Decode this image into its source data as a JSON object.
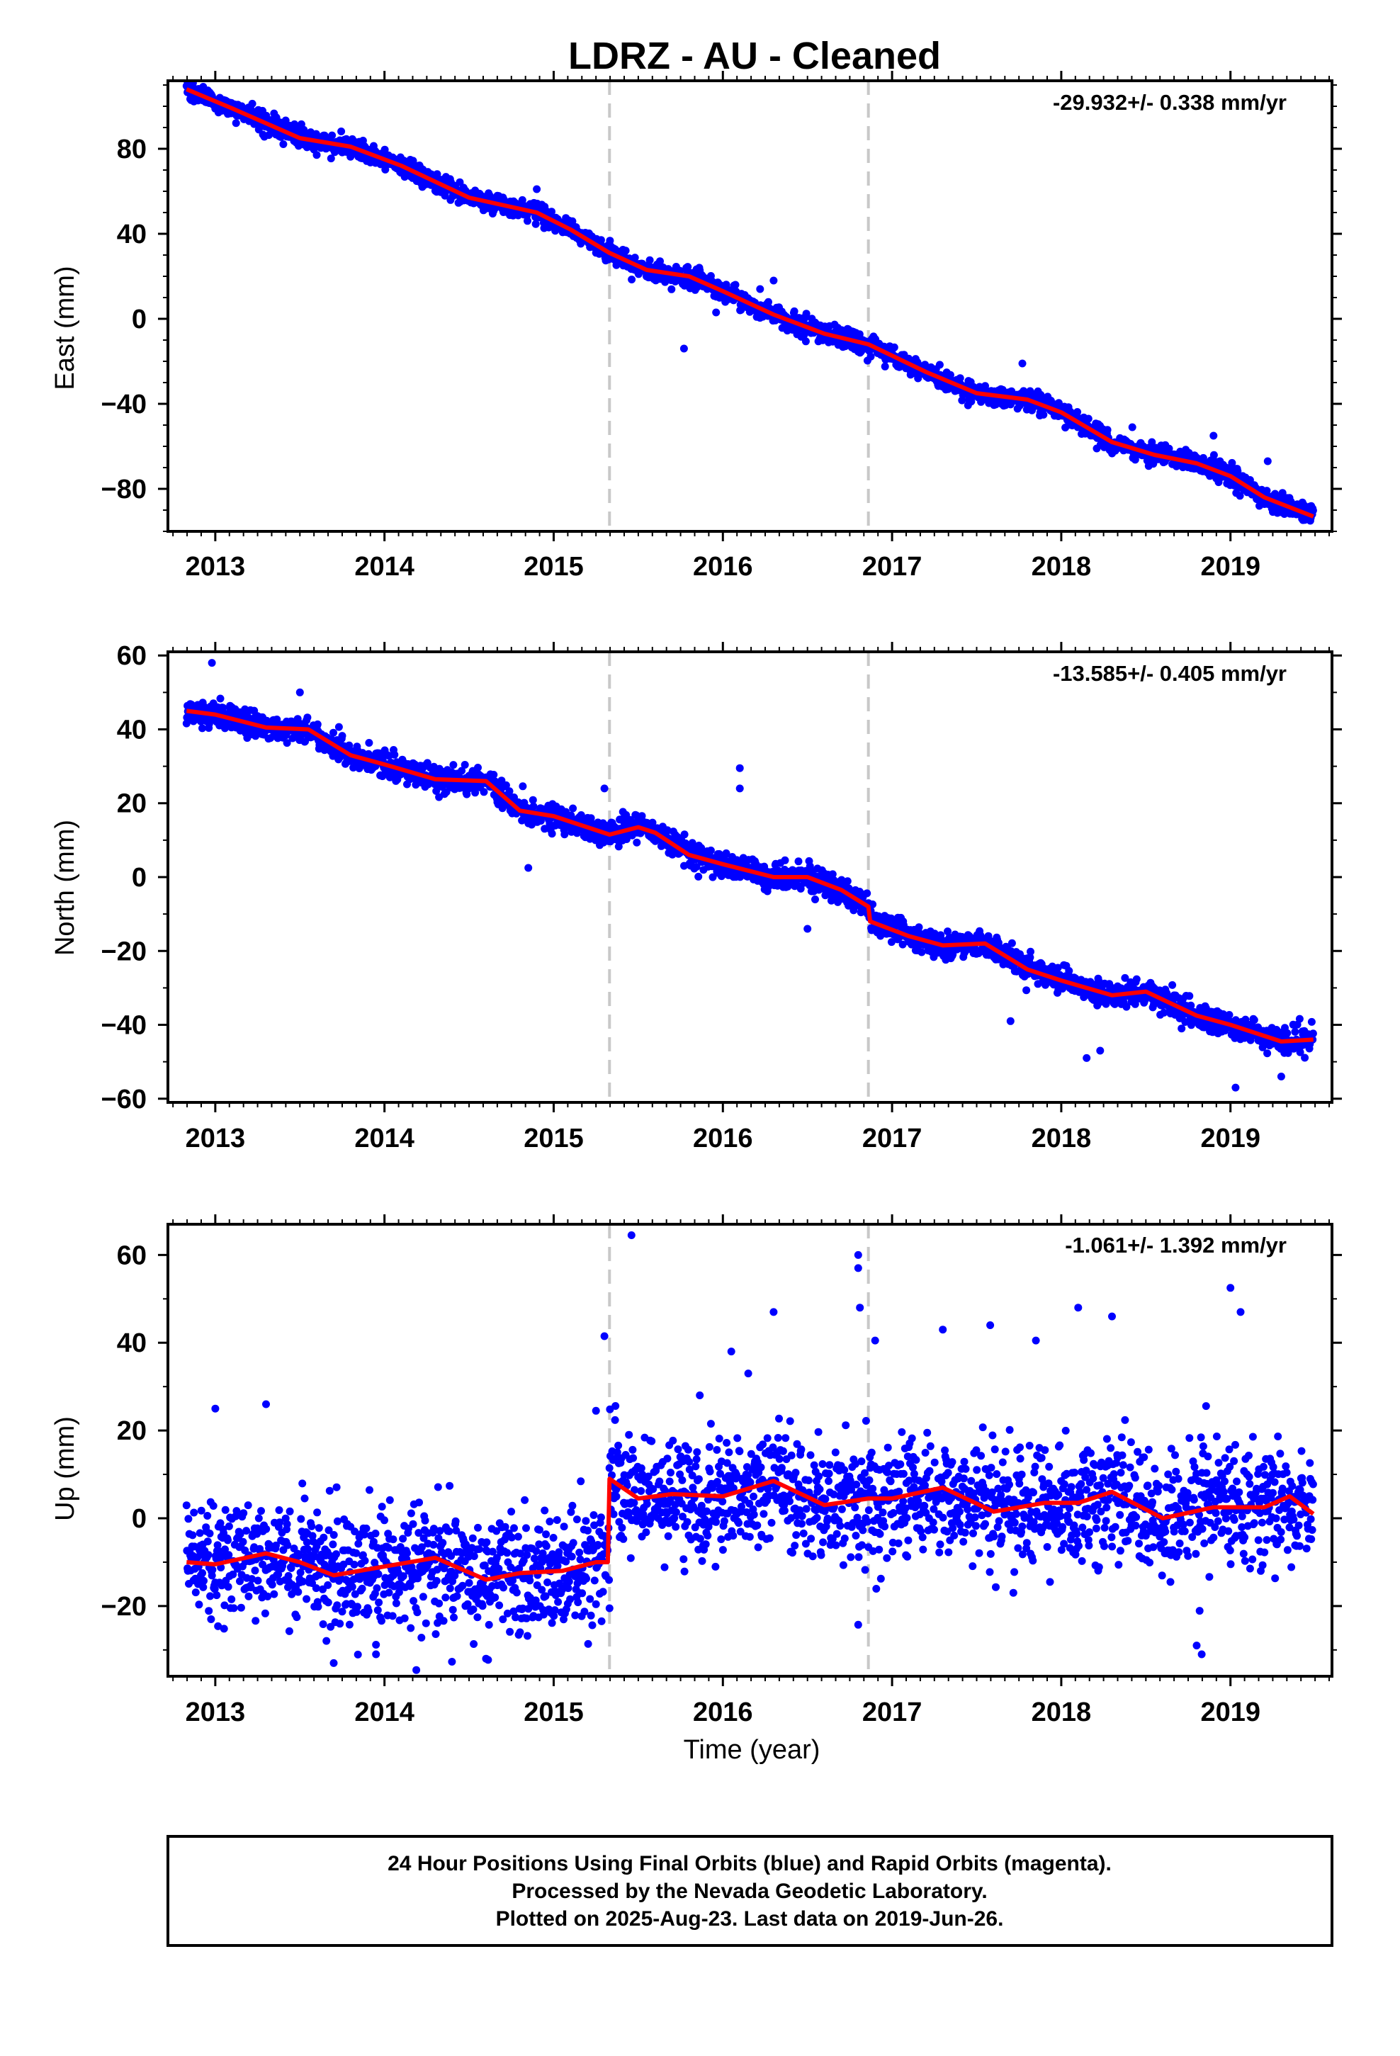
{
  "title": "LDRZ  - AU - Cleaned",
  "xlabel": "Time (year)",
  "footer": {
    "line1": "24 Hour Positions Using Final Orbits (blue) and Rapid Orbits (magenta).",
    "line2": "Processed by the Nevada Geodetic Laboratory.",
    "line3": "Plotted on 2025-Aug-23. Last data on 2019-Jun-26."
  },
  "colors": {
    "points": "#0000ff",
    "model": "#ff0000",
    "breaks": "#c8c8c8",
    "frame": "#000000"
  },
  "chart_data": [
    {
      "type": "scatter",
      "component": "east",
      "ylabel": "East (mm)",
      "rate_text": "-29.932+/- 0.338 mm/yr",
      "xlim": [
        2012.72,
        2019.6
      ],
      "ylim": [
        -100,
        112
      ],
      "yticks": [
        -80,
        -40,
        0,
        40,
        80
      ],
      "xticks": [
        2013,
        2014,
        2015,
        2016,
        2017,
        2018,
        2019
      ],
      "breaks": [
        2015.33,
        2016.86
      ],
      "start": 2012.83,
      "end": 2019.49,
      "noise": 2.3,
      "model": [
        [
          2012.83,
          108
        ],
        [
          2013.1,
          99
        ],
        [
          2013.5,
          85
        ],
        [
          2013.8,
          81
        ],
        [
          2014.1,
          72
        ],
        [
          2014.5,
          57
        ],
        [
          2014.9,
          50
        ],
        [
          2015.1,
          42
        ],
        [
          2015.33,
          31
        ],
        [
          2015.55,
          23
        ],
        [
          2015.8,
          20
        ],
        [
          2016.0,
          13
        ],
        [
          2016.3,
          2
        ],
        [
          2016.6,
          -7
        ],
        [
          2016.86,
          -12
        ],
        [
          2017.2,
          -25
        ],
        [
          2017.5,
          -35
        ],
        [
          2017.8,
          -38
        ],
        [
          2018.0,
          -44
        ],
        [
          2018.3,
          -58
        ],
        [
          2018.55,
          -64
        ],
        [
          2018.8,
          -68
        ],
        [
          2019.0,
          -74
        ],
        [
          2019.2,
          -84
        ],
        [
          2019.49,
          -93
        ]
      ],
      "outliers": [
        [
          2015.77,
          -14
        ],
        [
          2015.96,
          3
        ],
        [
          2016.22,
          14
        ],
        [
          2016.3,
          18
        ],
        [
          2017.77,
          -21
        ],
        [
          2018.42,
          -51
        ],
        [
          2018.9,
          -55
        ],
        [
          2019.22,
          -67
        ],
        [
          2014.9,
          61
        ],
        [
          2013.2,
          93
        ]
      ]
    },
    {
      "type": "scatter",
      "component": "north",
      "ylabel": "North (mm)",
      "rate_text": "-13.585+/- 0.405 mm/yr",
      "xlim": [
        2012.72,
        2019.6
      ],
      "ylim": [
        -61,
        61
      ],
      "yticks": [
        -60,
        -40,
        -20,
        0,
        20,
        40,
        60
      ],
      "xticks": [
        2013,
        2014,
        2015,
        2016,
        2017,
        2018,
        2019
      ],
      "breaks": [
        2015.33,
        2016.86
      ],
      "start": 2012.83,
      "end": 2019.49,
      "noise": 1.7,
      "model": [
        [
          2012.83,
          45
        ],
        [
          2013.0,
          44
        ],
        [
          2013.3,
          40.5
        ],
        [
          2013.55,
          40
        ],
        [
          2013.8,
          33
        ],
        [
          2014.0,
          30.5
        ],
        [
          2014.3,
          26.5
        ],
        [
          2014.6,
          26
        ],
        [
          2014.8,
          18
        ],
        [
          2015.0,
          16.5
        ],
        [
          2015.33,
          11.5
        ],
        [
          2015.5,
          13.5
        ],
        [
          2015.6,
          12
        ],
        [
          2015.8,
          6
        ],
        [
          2016.0,
          3.5
        ],
        [
          2016.3,
          0
        ],
        [
          2016.5,
          0
        ],
        [
          2016.7,
          -3.5
        ],
        [
          2016.86,
          -8
        ],
        [
          2016.87,
          -12
        ],
        [
          2017.1,
          -16
        ],
        [
          2017.3,
          -18.5
        ],
        [
          2017.55,
          -18
        ],
        [
          2017.8,
          -25
        ],
        [
          2018.0,
          -28
        ],
        [
          2018.3,
          -32
        ],
        [
          2018.5,
          -31
        ],
        [
          2018.8,
          -37.5
        ],
        [
          2019.0,
          -40
        ],
        [
          2019.3,
          -44.5
        ],
        [
          2019.49,
          -44
        ]
      ],
      "outliers": [
        [
          2012.98,
          58
        ],
        [
          2013.5,
          50
        ],
        [
          2014.85,
          2.5
        ],
        [
          2016.1,
          29.5
        ],
        [
          2016.1,
          24
        ],
        [
          2015.7,
          9
        ],
        [
          2017.7,
          -39
        ],
        [
          2018.15,
          -49
        ],
        [
          2018.23,
          -47
        ],
        [
          2019.03,
          -57
        ],
        [
          2019.3,
          -54
        ],
        [
          2016.5,
          -14
        ],
        [
          2015.3,
          24
        ]
      ]
    },
    {
      "type": "scatter",
      "component": "up",
      "ylabel": "Up (mm)",
      "rate_text": "-1.061+/- 1.392 mm/yr",
      "xlim": [
        2012.72,
        2019.6
      ],
      "ylim": [
        -36,
        67
      ],
      "yticks": [
        -20,
        0,
        20,
        40,
        60
      ],
      "xticks": [
        2013,
        2014,
        2015,
        2016,
        2017,
        2018,
        2019
      ],
      "breaks": [
        2015.33,
        2016.86
      ],
      "start": 2012.83,
      "end": 2019.49,
      "noise": 6.5,
      "model": [
        [
          2012.83,
          -10
        ],
        [
          2013.0,
          -10.5
        ],
        [
          2013.3,
          -8
        ],
        [
          2013.5,
          -10
        ],
        [
          2013.7,
          -13
        ],
        [
          2014.0,
          -11
        ],
        [
          2014.3,
          -9
        ],
        [
          2014.6,
          -14
        ],
        [
          2014.8,
          -12.5
        ],
        [
          2015.05,
          -12
        ],
        [
          2015.25,
          -10
        ],
        [
          2015.32,
          -10
        ],
        [
          2015.33,
          9
        ],
        [
          2015.5,
          4.5
        ],
        [
          2015.7,
          5.5
        ],
        [
          2016.0,
          5
        ],
        [
          2016.3,
          8.5
        ],
        [
          2016.6,
          3
        ],
        [
          2016.86,
          4.5
        ],
        [
          2017.0,
          4.5
        ],
        [
          2017.3,
          7
        ],
        [
          2017.6,
          1.5
        ],
        [
          2017.9,
          3.5
        ],
        [
          2018.1,
          3.5
        ],
        [
          2018.3,
          6
        ],
        [
          2018.6,
          0
        ],
        [
          2018.9,
          2.5
        ],
        [
          2019.2,
          2.5
        ],
        [
          2019.35,
          5
        ],
        [
          2019.49,
          1
        ]
      ],
      "outliers": [
        [
          2015.46,
          64.5
        ],
        [
          2016.8,
          60
        ],
        [
          2016.8,
          57
        ],
        [
          2016.81,
          48
        ],
        [
          2019.0,
          52.5
        ],
        [
          2015.3,
          41.5
        ],
        [
          2013.3,
          26
        ],
        [
          2013.0,
          25
        ],
        [
          2016.3,
          47
        ],
        [
          2018.1,
          48
        ],
        [
          2018.3,
          46
        ],
        [
          2017.58,
          44
        ],
        [
          2019.06,
          47
        ],
        [
          2018.8,
          -29
        ],
        [
          2018.83,
          -31
        ],
        [
          2013.7,
          -33
        ],
        [
          2014.6,
          -32
        ],
        [
          2013.95,
          -31
        ],
        [
          2015.33,
          -20.5
        ],
        [
          2016.05,
          38
        ],
        [
          2016.9,
          40.5
        ],
        [
          2017.3,
          43
        ],
        [
          2015.25,
          24.5
        ],
        [
          2016.15,
          33
        ],
        [
          2017.85,
          40.5
        ]
      ]
    }
  ]
}
